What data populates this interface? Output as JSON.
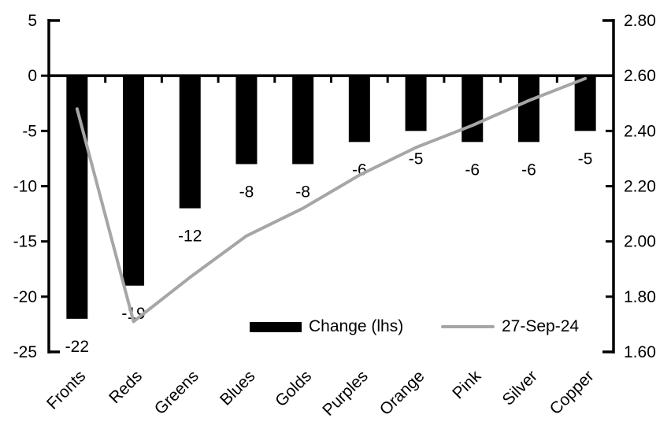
{
  "chart_data": {
    "type": "combo_bar_line",
    "title": "",
    "categories": [
      "Fronts",
      "Reds",
      "Greens",
      "Blues",
      "Golds",
      "Purples",
      "Orange",
      "Pink",
      "Silver",
      "Copper"
    ],
    "series": [
      {
        "name": "Change (lhs)",
        "type": "bar",
        "axis": "left",
        "color": "#000000",
        "values": [
          -22,
          -19,
          -12,
          -8,
          -8,
          -6,
          -5,
          -6,
          -6,
          -5
        ],
        "labels": [
          "-22",
          "-19",
          "-12",
          "-8",
          "-8",
          "-6",
          "-5",
          "-6",
          "-6",
          "-5"
        ]
      },
      {
        "name": "27-Sep-24",
        "type": "line",
        "axis": "right",
        "color": "#a6a6a6",
        "values": [
          2.48,
          1.71,
          1.87,
          2.02,
          2.12,
          2.24,
          2.34,
          2.42,
          2.51,
          2.59
        ]
      }
    ],
    "left_axis": {
      "min": -25,
      "max": 5,
      "tick_values": [
        5,
        0,
        -5,
        -10,
        -15,
        -20,
        -25
      ],
      "tick_labels": [
        "5",
        "0",
        "-5",
        "-10",
        "-15",
        "-20",
        "-25"
      ]
    },
    "right_axis": {
      "min": 1.6,
      "max": 2.8,
      "tick_values": [
        2.8,
        2.6,
        2.4,
        2.2,
        2.0,
        1.8,
        1.6
      ],
      "tick_labels": [
        "2.80",
        "2.60",
        "2.40",
        "2.20",
        "2.00",
        "1.80",
        "1.60"
      ]
    },
    "grid": false,
    "legend_position": "bottom-center",
    "background": "#ffffff",
    "axis_color": "#000000",
    "category_label_rotation_deg": -45
  }
}
